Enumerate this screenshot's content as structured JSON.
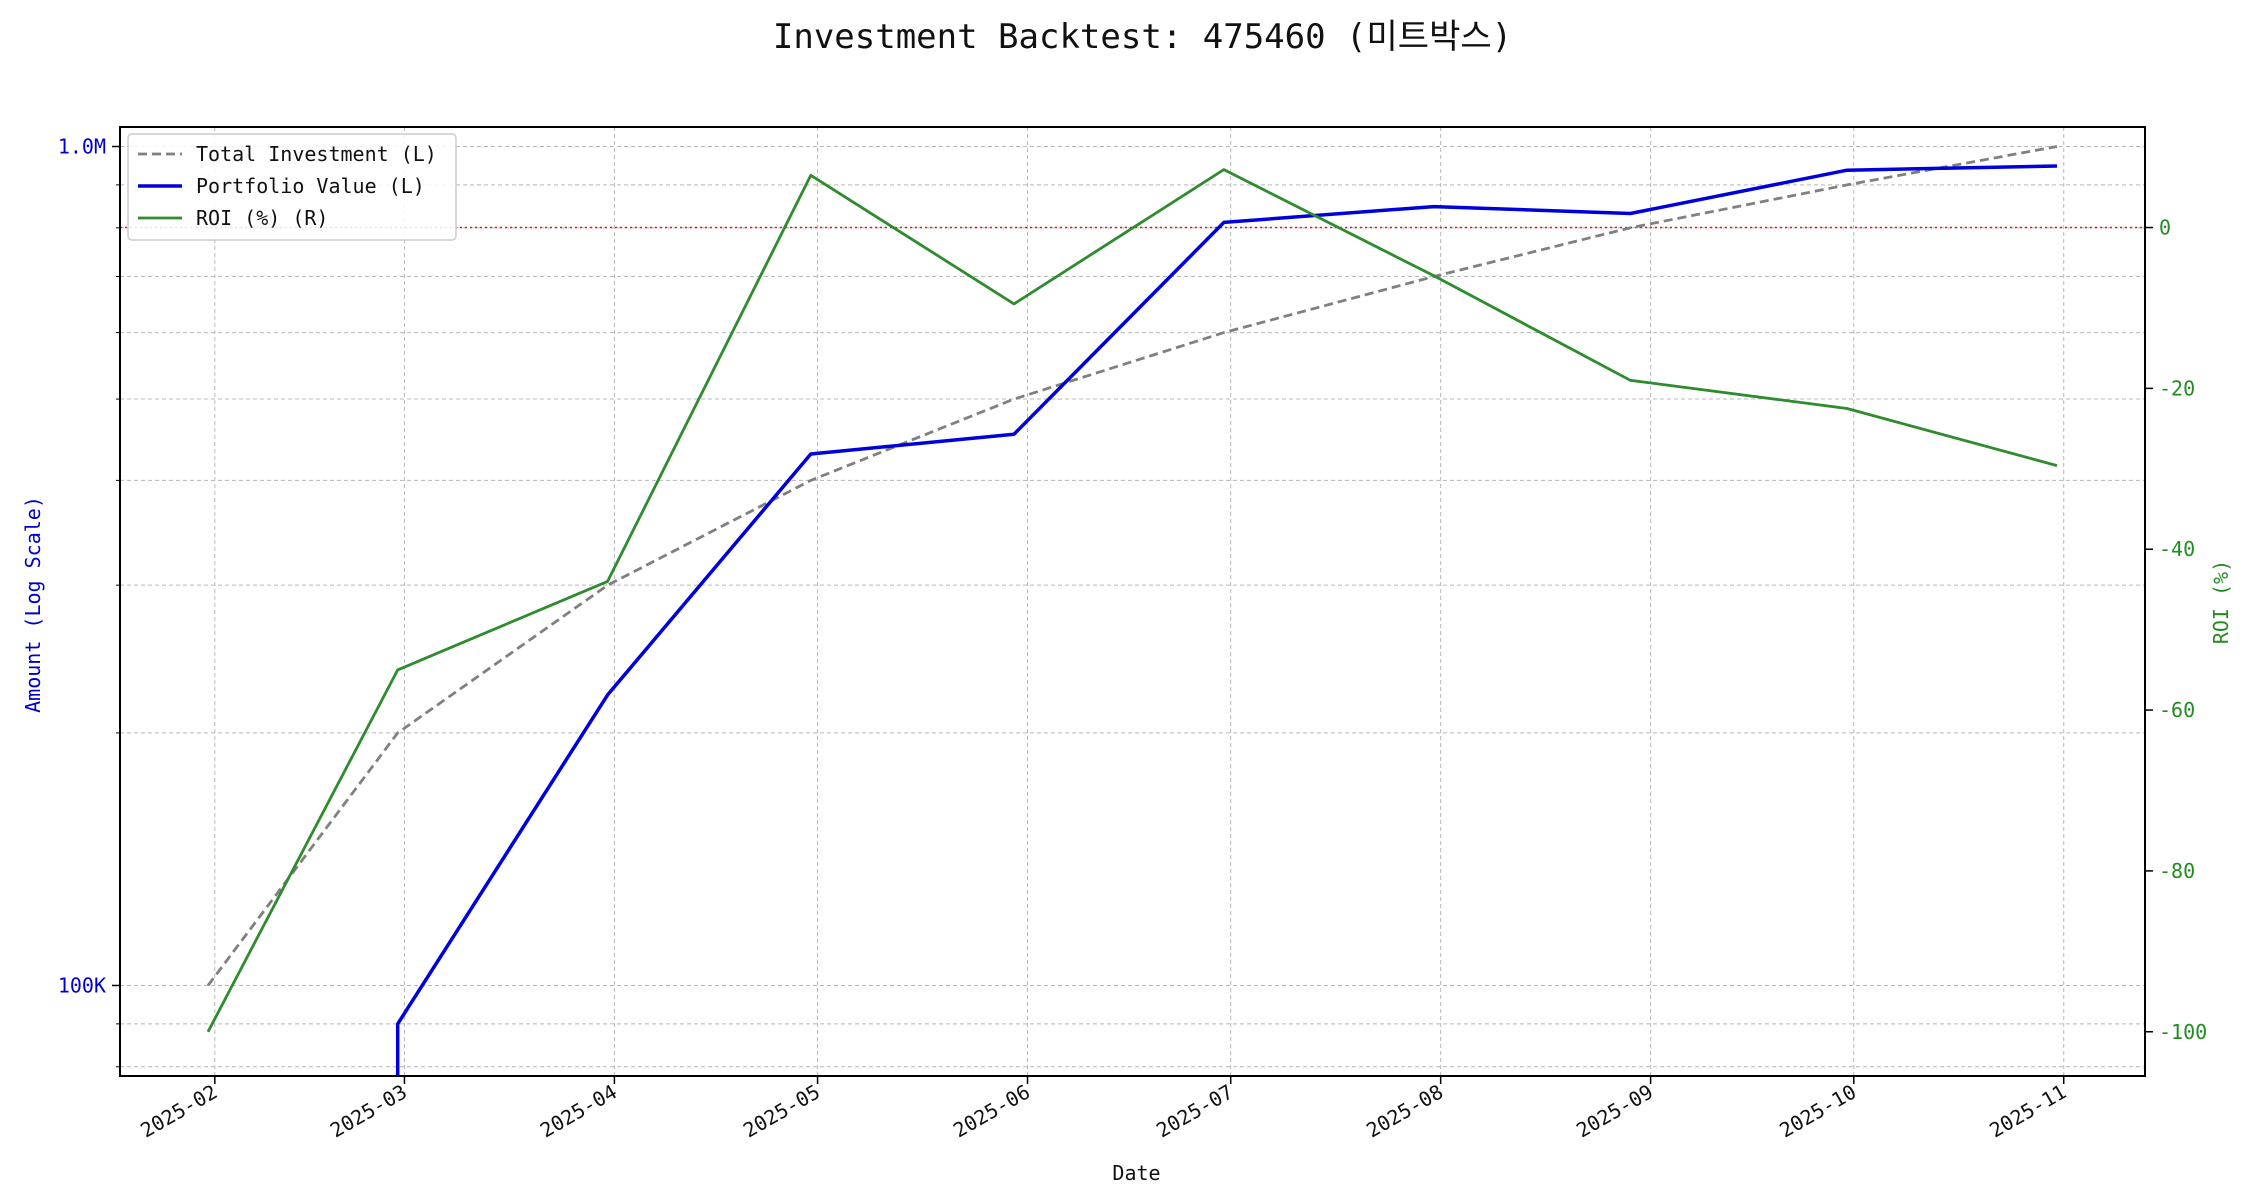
{
  "chart_data": {
    "type": "line",
    "title": "Investment Backtest: 475460 (미트박스)",
    "xlabel": "Date",
    "ylabel_left": "Amount (Log Scale)",
    "ylabel_right": "ROI (%)",
    "x": [
      "2025-01-31",
      "2025-02-28",
      "2025-03-31",
      "2025-04-30",
      "2025-05-30",
      "2025-06-30",
      "2025-07-31",
      "2025-08-29",
      "2025-09-30",
      "2025-10-31"
    ],
    "x_ticks": [
      "2025-02",
      "2025-03",
      "2025-04",
      "2025-05",
      "2025-06",
      "2025-07",
      "2025-08",
      "2025-09",
      "2025-10",
      "2025-11"
    ],
    "x_range": [
      "2025-01-18",
      "2025-11-13"
    ],
    "left_axis": {
      "scale": "log",
      "ylim": [
        78000,
        1055000
      ],
      "ticks": [
        "100K",
        "1.0M"
      ]
    },
    "right_axis": {
      "scale": "linear",
      "ylim": [
        -105.5,
        12.5
      ],
      "ticks": [
        "0",
        "-20",
        "-40",
        "-60",
        "-80",
        "-100"
      ]
    },
    "series": [
      {
        "name": "Total Investment (L)",
        "axis": "left",
        "style": "dashed",
        "color": "#808080",
        "values": [
          100000,
          200000,
          300000,
          400000,
          500000,
          600000,
          700000,
          800000,
          900000,
          1000000
        ]
      },
      {
        "name": "Portfolio Value (L)",
        "axis": "left",
        "style": "solid",
        "color": "#0000dd",
        "values": [
          null,
          [
            0,
            90000
          ],
          222000,
          430000,
          454000,
          812000,
          848000,
          832000,
          937000,
          948000
        ]
      },
      {
        "name": "ROI (%) (R)",
        "axis": "right",
        "style": "solid",
        "color": "#2e8b2e",
        "values": [
          -100,
          -55,
          -44,
          6.5,
          -9.5,
          7.2,
          -6,
          -19,
          -22.5,
          -29.6
        ]
      }
    ],
    "reference_line": {
      "axis": "right",
      "value": 0,
      "color": "#cc2222",
      "style": "dotted"
    },
    "grid": true,
    "legend_position": "top-left"
  },
  "colors": {
    "left_axis": "#0000cc",
    "right_axis": "#228b22"
  }
}
